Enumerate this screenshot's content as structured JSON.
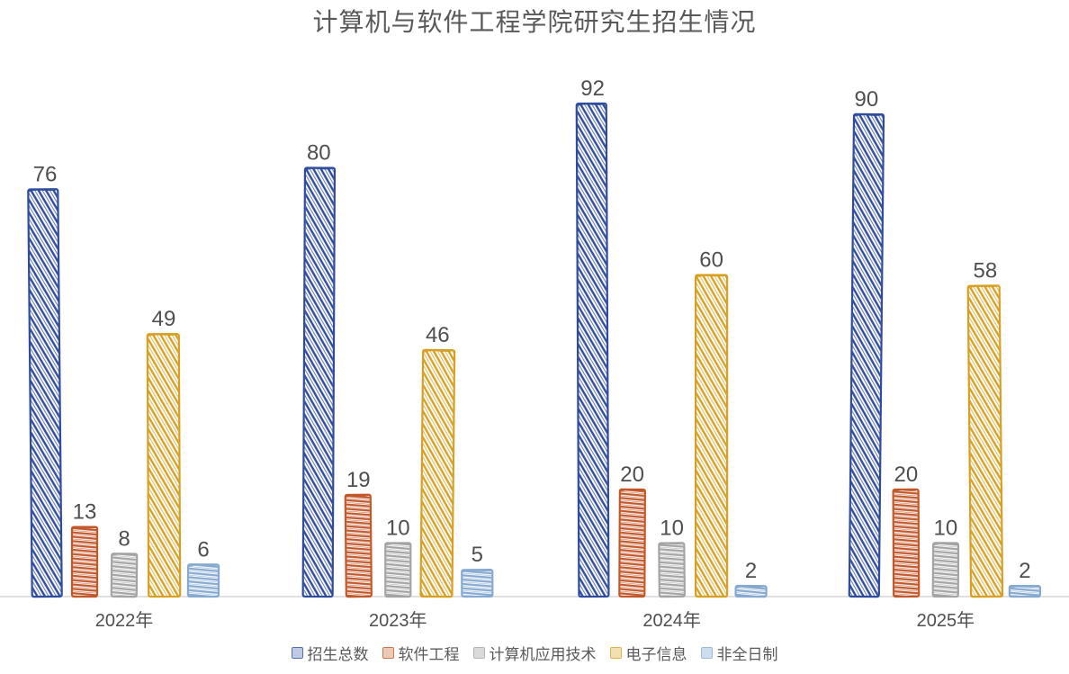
{
  "chart_data": {
    "type": "bar",
    "style": "hand-drawn-sketch-grouped-bars",
    "title": "计算机与软件工程学院研究生招生情况",
    "categories": [
      "2022年",
      "2023年",
      "2024年",
      "2025年"
    ],
    "series": [
      {
        "name": "招生总数",
        "values": [
          76,
          80,
          92,
          90
        ],
        "color": "#2F4C9C",
        "tint": "#AEBDDE"
      },
      {
        "name": "软件工程",
        "values": [
          13,
          19,
          20,
          20
        ],
        "color": "#C2572A",
        "tint": "#EBBDA4"
      },
      {
        "name": "计算机应用技术",
        "values": [
          8,
          10,
          10,
          10
        ],
        "color": "#A3A3A3",
        "tint": "#D2D2D2"
      },
      {
        "name": "电子信息",
        "values": [
          49,
          46,
          60,
          58
        ],
        "color": "#D7A022",
        "tint": "#EFD9A2"
      },
      {
        "name": "非全日制",
        "values": [
          6,
          5,
          2,
          2
        ],
        "color": "#85A9D0",
        "tint": "#C3D5E9"
      }
    ],
    "data_labels": true,
    "legend_position": "bottom",
    "gridlines": false,
    "value_axis": {
      "visible": false,
      "min": 0
    },
    "category_axis": {
      "visible": true
    },
    "colors": {
      "background": "#FFFFFF",
      "title": "#595959",
      "data_label": "#4F4F4F",
      "category_label": "#4F4F4F",
      "legend_label": "#595959",
      "axis_line": "#D6D6D6"
    }
  }
}
